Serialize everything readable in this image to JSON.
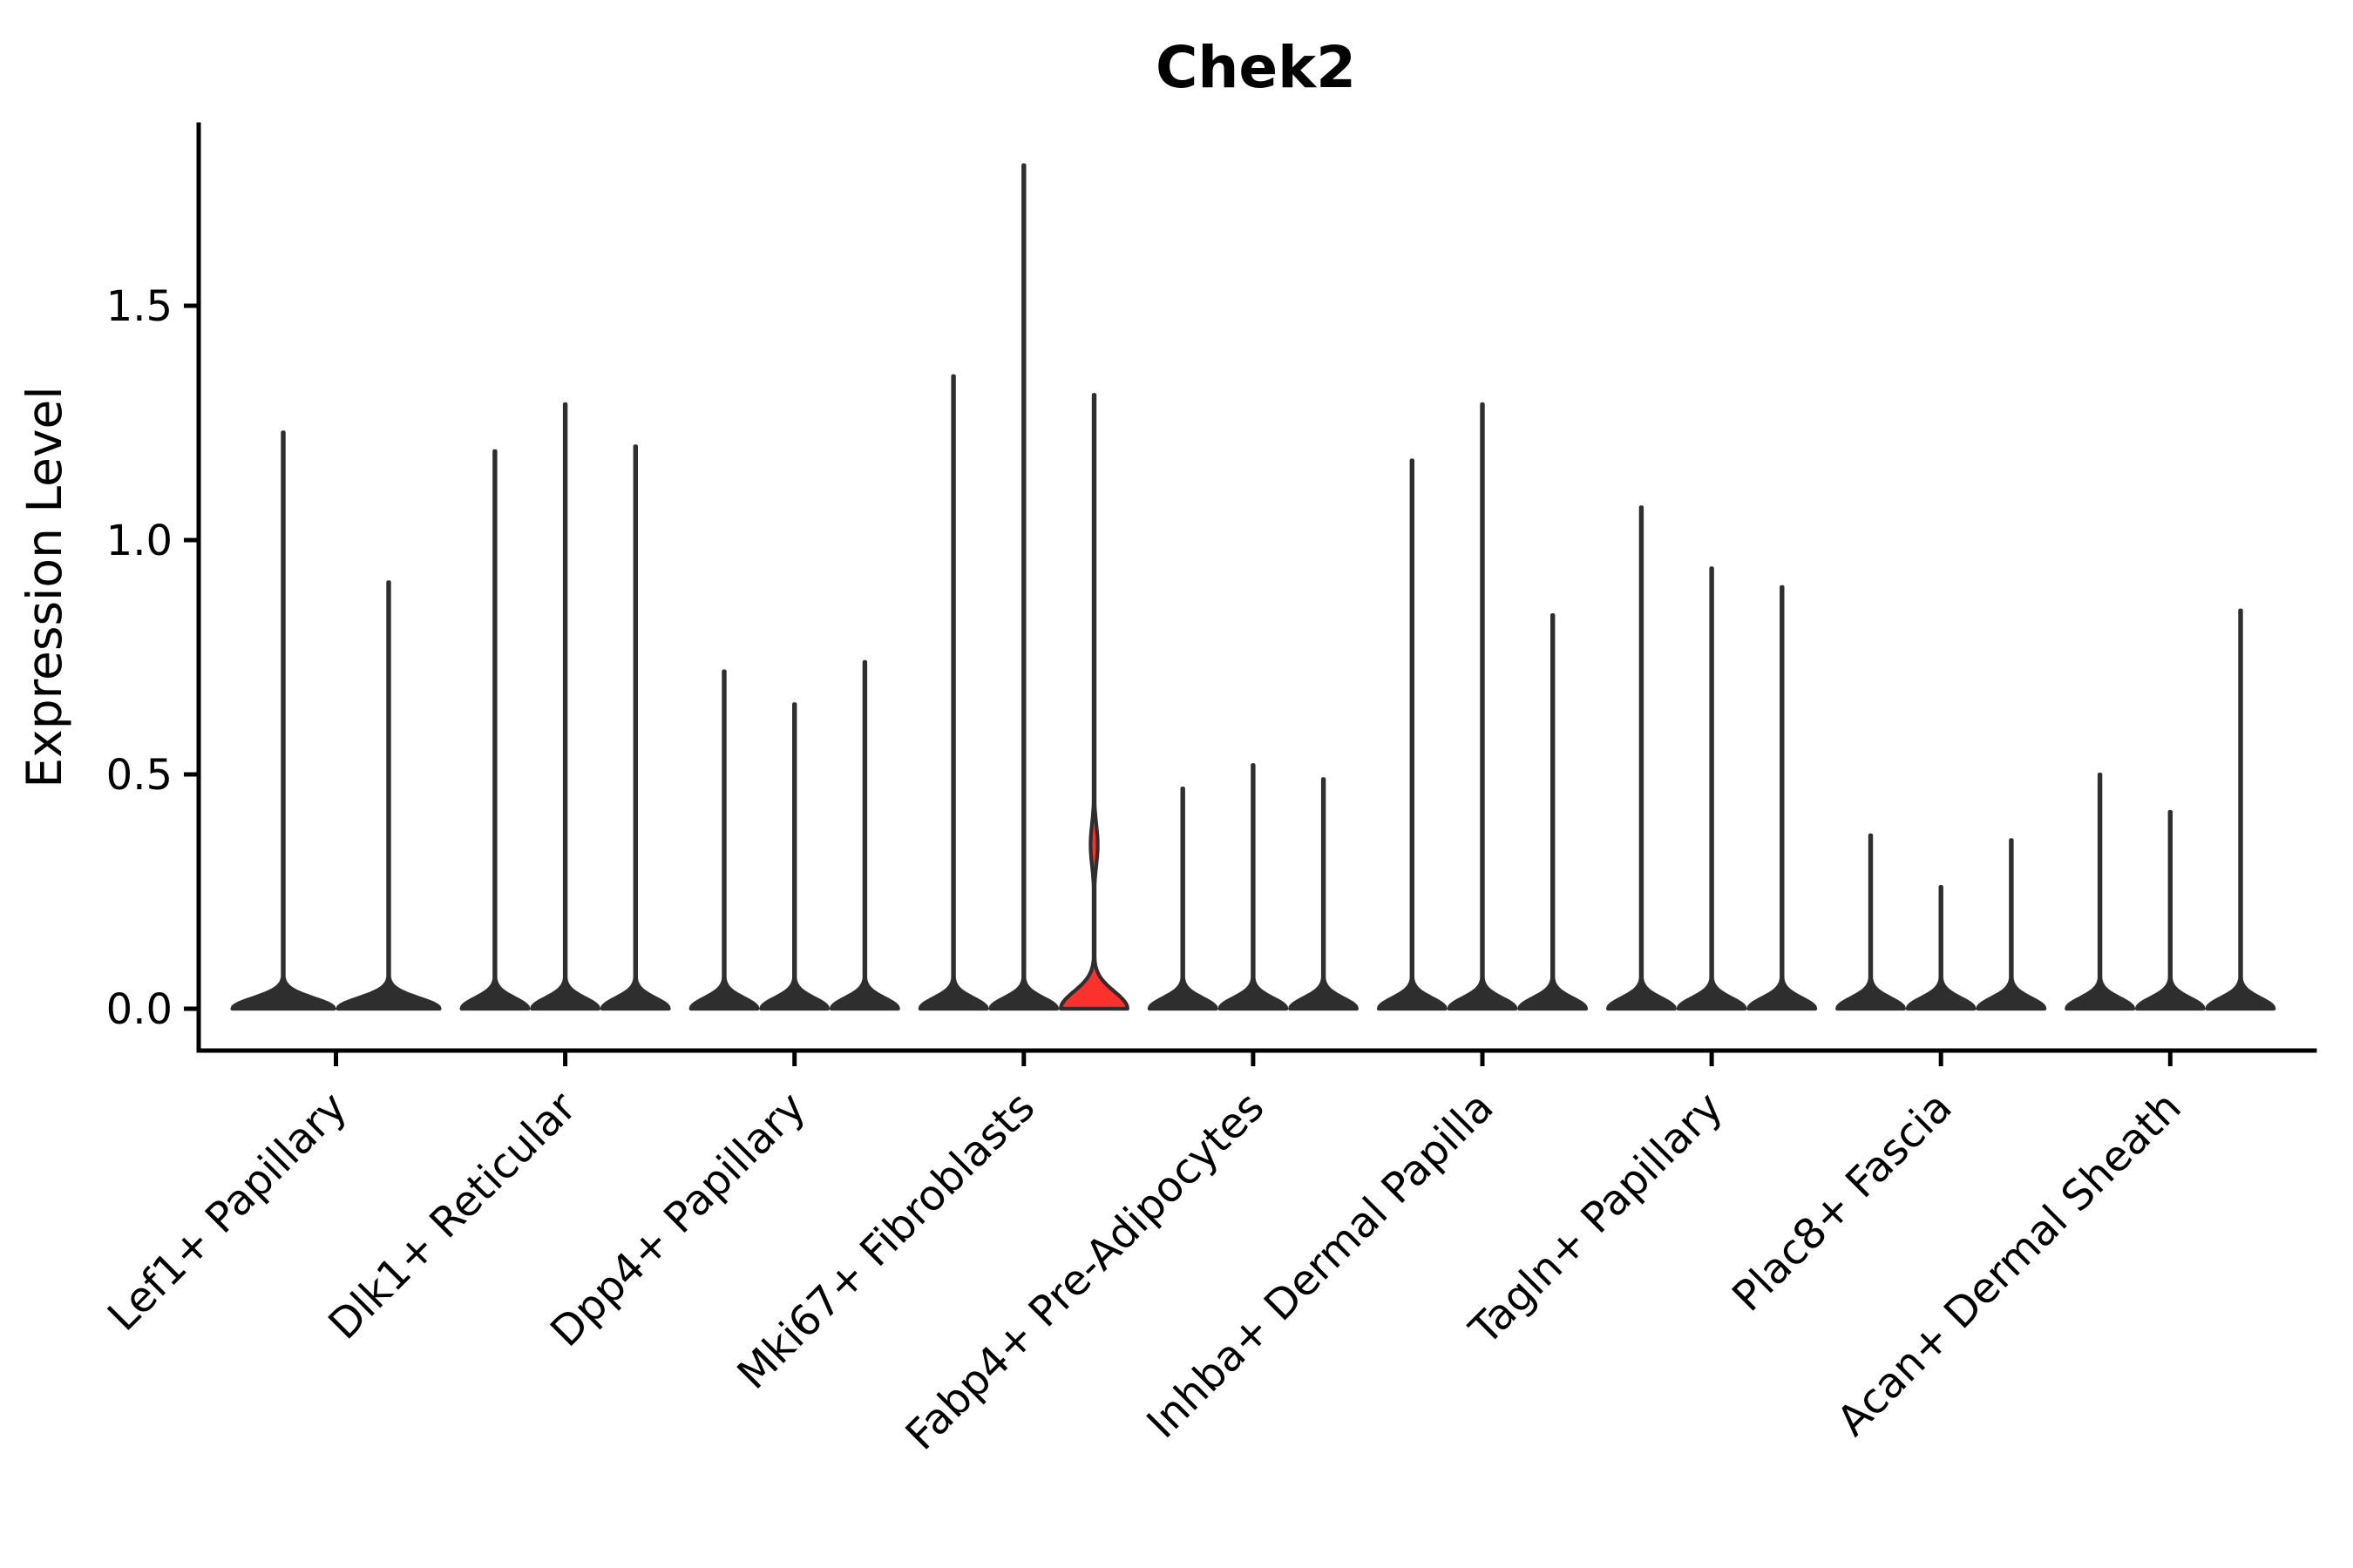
{
  "colors": {
    "background": "#ffffff",
    "axis": "#000000",
    "text": "#000000",
    "violin_outline": "#2e2e2e",
    "violin_fill": "#2e2e2e",
    "highlight_fill": "#fa312c"
  },
  "chart_data": {
    "type": "violin",
    "title": "Chek2",
    "ylabel": "Expression Level",
    "xlabel": "",
    "grid": false,
    "legend": "none",
    "y_ticks": [
      "0.0",
      "0.5",
      "1.0",
      "1.5"
    ],
    "ylim": [
      0,
      1.89
    ],
    "categories": [
      "Lef1+ Papillary",
      "Dlk1+ Reticular",
      "Dpp4+ Papillary",
      "Mki67+ Fibroblasts",
      "Fabp4+ Pre-Adipocytes",
      "Inhba+ Dermal Papilla",
      "Tagln+ Papillary",
      "Plac8+ Fascia",
      "Acan+ Dermal Sheath"
    ],
    "description": "Violin plot of Chek2 expression per fibroblast subtype; expression is near zero for most cells so violins collapse to flat baselines at 0 with thin spikes up to each violin's maximum; one violin is highlighted red.",
    "groups": [
      {
        "category": "Lef1+ Papillary",
        "violin_max": [
          1.23,
          0.91
        ]
      },
      {
        "category": "Dlk1+ Reticular",
        "violin_max": [
          1.19,
          1.29,
          1.2
        ]
      },
      {
        "category": "Dpp4+ Papillary",
        "violin_max": [
          0.72,
          0.65,
          0.74
        ]
      },
      {
        "category": "Mki67+ Fibroblasts",
        "violin_max": [
          1.35,
          1.8,
          1.31
        ],
        "highlight_index": 2
      },
      {
        "category": "Fabp4+ Pre-Adipocytes",
        "violin_max": [
          0.47,
          0.52,
          0.49
        ]
      },
      {
        "category": "Inhba+ Dermal Papilla",
        "violin_max": [
          1.17,
          1.29,
          0.84
        ]
      },
      {
        "category": "Tagln+ Papillary",
        "violin_max": [
          1.07,
          0.94,
          0.9
        ]
      },
      {
        "category": "Plac8+ Fascia",
        "violin_max": [
          0.37,
          0.26,
          0.36
        ]
      },
      {
        "category": "Acan+ Dermal Sheath",
        "violin_max": [
          0.5,
          0.42,
          0.85
        ]
      }
    ],
    "highlight": {
      "category": "Mki67+ Fibroblasts",
      "violin_index": 2,
      "max": 1.31,
      "base_bulge_top": 0.1,
      "mid_bulge_range": [
        0.23,
        0.49
      ],
      "mid_bulge_peak": 0.35
    }
  }
}
